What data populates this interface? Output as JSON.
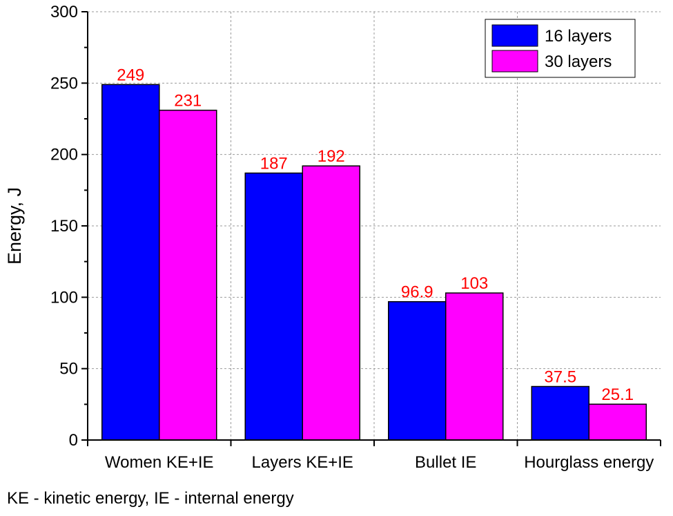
{
  "chart_data": {
    "type": "bar",
    "title": "",
    "xlabel": "",
    "ylabel": "Energy, J",
    "ylim": [
      0,
      300
    ],
    "yticks": [
      0,
      50,
      100,
      150,
      200,
      250,
      300
    ],
    "categories": [
      "Women KE+IE",
      "Layers KE+IE",
      "Bullet IE",
      "Hourglass energy"
    ],
    "series": [
      {
        "name": "16 layers",
        "color": "#0000ff",
        "values": [
          249,
          187,
          96.9,
          37.5
        ],
        "labels": [
          "249",
          "187",
          "96.9",
          "37.5"
        ]
      },
      {
        "name": "30 layers",
        "color": "#ff00ff",
        "values": [
          231,
          192,
          103,
          25.1
        ],
        "labels": [
          "231",
          "192",
          "103",
          "25.1"
        ]
      }
    ],
    "data_label_color": "#ff0000",
    "grid": true,
    "legend_position": "top-right"
  },
  "footnote": "KE - kinetic energy, IE - internal energy"
}
